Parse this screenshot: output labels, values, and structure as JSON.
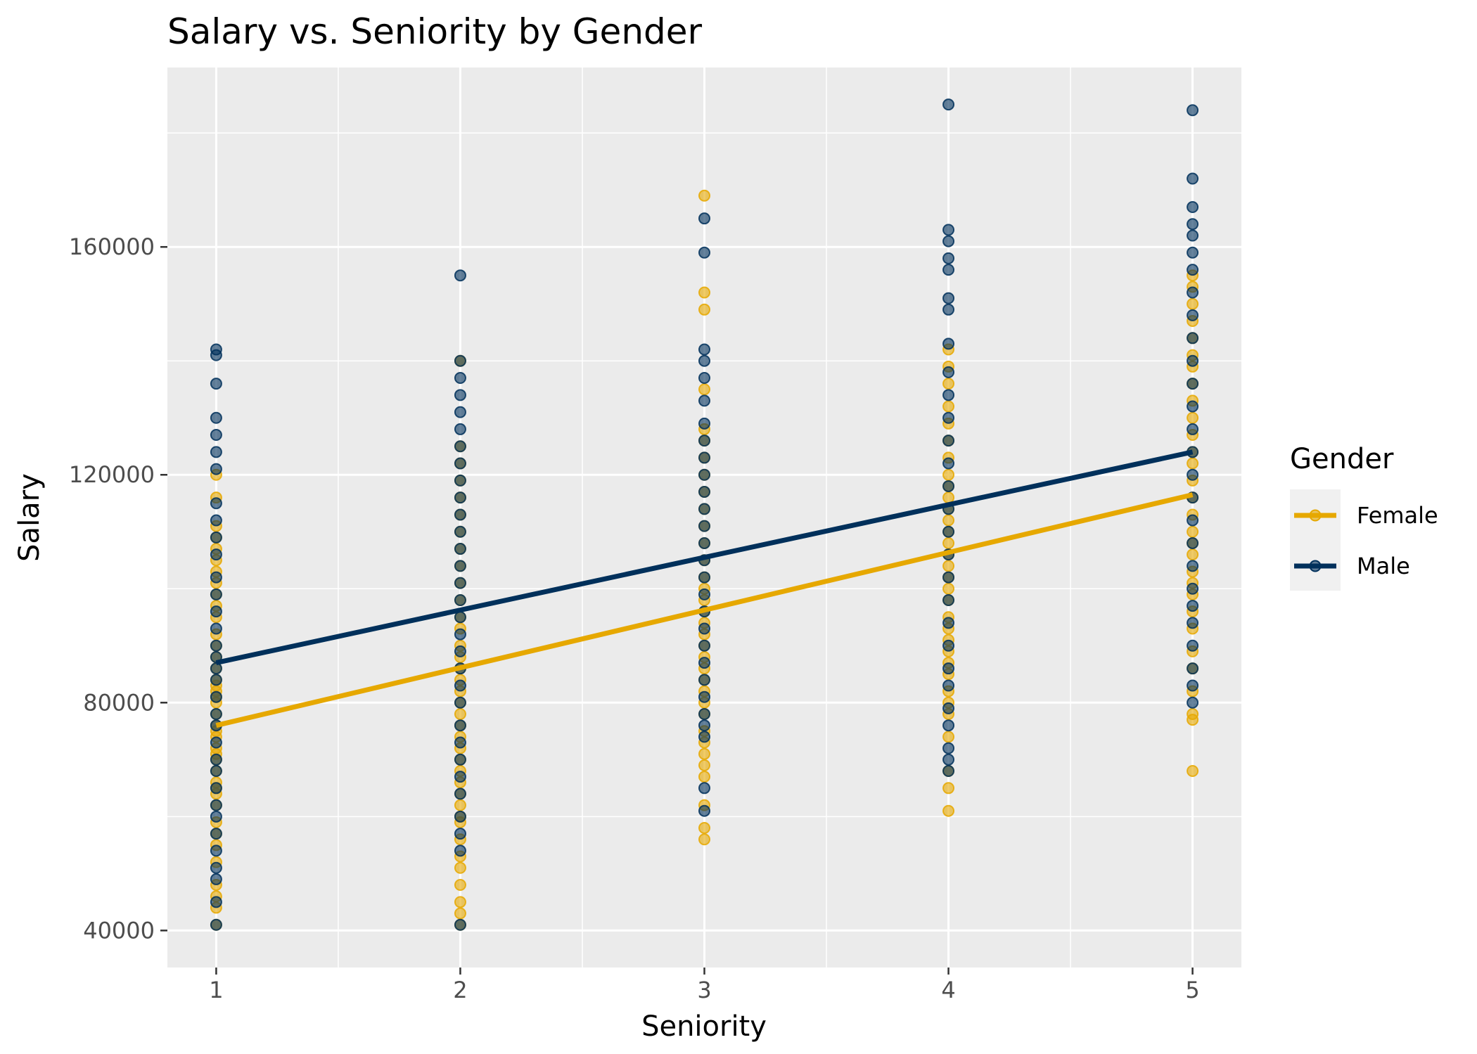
{
  "chart_data": {
    "type": "scatter",
    "title": "Salary vs. Seniority by Gender",
    "xlabel": "Seniority",
    "ylabel": "Salary",
    "xlim": [
      0.8,
      5.2
    ],
    "ylim": [
      33500,
      191500
    ],
    "x_ticks": [
      1,
      2,
      3,
      4,
      5
    ],
    "x_tick_labels": [
      "1",
      "2",
      "3",
      "4",
      "5"
    ],
    "y_ticks": [
      40000,
      80000,
      120000,
      160000
    ],
    "y_tick_labels": [
      "40000",
      "80000",
      "120000",
      "160000"
    ],
    "grid": true,
    "background": "#ebebeb",
    "legend": {
      "title": "Gender",
      "placement": "right"
    },
    "series": [
      {
        "name": "Female",
        "color": "#E6A800",
        "points": {
          "1": [
            41000,
            44000,
            46000,
            48000,
            52000,
            55000,
            57000,
            59000,
            62000,
            64000,
            65000,
            66000,
            68000,
            70000,
            71000,
            72000,
            74000,
            75000,
            76000,
            78000,
            80000,
            81000,
            82000,
            83000,
            84000,
            86000,
            88000,
            90000,
            92000,
            95000,
            97000,
            99000,
            101000,
            103000,
            105000,
            107000,
            109000,
            111000,
            116000,
            120000
          ],
          "2": [
            41000,
            43000,
            45000,
            48000,
            51000,
            53000,
            56000,
            59000,
            60000,
            62000,
            64000,
            66000,
            68000,
            70000,
            72000,
            74000,
            76000,
            78000,
            80000,
            82000,
            84000,
            86000,
            88000,
            90000,
            93000,
            95000,
            98000,
            101000,
            104000,
            107000,
            110000,
            113000,
            116000,
            119000,
            122000,
            125000,
            140000
          ],
          "3": [
            56000,
            58000,
            62000,
            67000,
            69000,
            71000,
            73000,
            75000,
            78000,
            80000,
            82000,
            84000,
            86000,
            88000,
            90000,
            92000,
            94000,
            96000,
            98000,
            100000,
            102000,
            105000,
            108000,
            111000,
            114000,
            117000,
            120000,
            123000,
            126000,
            128000,
            135000,
            149000,
            152000,
            169000
          ],
          "4": [
            61000,
            65000,
            68000,
            74000,
            78000,
            80000,
            82000,
            85000,
            87000,
            89000,
            91000,
            93000,
            95000,
            98000,
            100000,
            102000,
            104000,
            106000,
            108000,
            110000,
            112000,
            114000,
            116000,
            118000,
            120000,
            123000,
            126000,
            129000,
            132000,
            136000,
            139000,
            142000
          ],
          "5": [
            68000,
            77000,
            78000,
            82000,
            86000,
            89000,
            93000,
            96000,
            99000,
            101000,
            103000,
            106000,
            108000,
            110000,
            113000,
            116000,
            119000,
            122000,
            124000,
            127000,
            130000,
            133000,
            136000,
            139000,
            141000,
            144000,
            147000,
            150000,
            153000,
            155000
          ]
        },
        "trend": {
          "x": [
            1,
            5
          ],
          "y": [
            76000,
            116500
          ]
        }
      },
      {
        "name": "Male",
        "color": "#00305B",
        "points": {
          "1": [
            41000,
            45000,
            49000,
            51000,
            54000,
            57000,
            60000,
            62000,
            65000,
            68000,
            70000,
            73000,
            76000,
            78000,
            81000,
            84000,
            86000,
            88000,
            90000,
            93000,
            96000,
            99000,
            102000,
            106000,
            109000,
            112000,
            115000,
            121000,
            124000,
            127000,
            130000,
            136000,
            141000,
            142000
          ],
          "2": [
            41000,
            54000,
            57000,
            60000,
            64000,
            67000,
            70000,
            73000,
            76000,
            80000,
            83000,
            86000,
            89000,
            92000,
            95000,
            98000,
            101000,
            104000,
            107000,
            110000,
            113000,
            116000,
            119000,
            122000,
            125000,
            128000,
            131000,
            134000,
            137000,
            140000,
            155000
          ],
          "3": [
            61000,
            65000,
            74000,
            76000,
            78000,
            81000,
            84000,
            87000,
            90000,
            93000,
            96000,
            99000,
            102000,
            105000,
            108000,
            111000,
            114000,
            117000,
            120000,
            123000,
            126000,
            129000,
            133000,
            137000,
            140000,
            142000,
            159000,
            165000
          ],
          "4": [
            68000,
            70000,
            72000,
            76000,
            79000,
            83000,
            86000,
            90000,
            94000,
            98000,
            102000,
            106000,
            110000,
            114000,
            118000,
            122000,
            126000,
            130000,
            134000,
            138000,
            143000,
            149000,
            151000,
            156000,
            158000,
            161000,
            163000,
            185000
          ],
          "5": [
            80000,
            83000,
            86000,
            90000,
            94000,
            97000,
            100000,
            104000,
            108000,
            112000,
            116000,
            120000,
            124000,
            128000,
            132000,
            136000,
            140000,
            144000,
            148000,
            152000,
            156000,
            159000,
            162000,
            164000,
            167000,
            172000,
            184000
          ]
        },
        "trend": {
          "x": [
            1,
            5
          ],
          "y": [
            87000,
            124000
          ]
        }
      }
    ]
  }
}
